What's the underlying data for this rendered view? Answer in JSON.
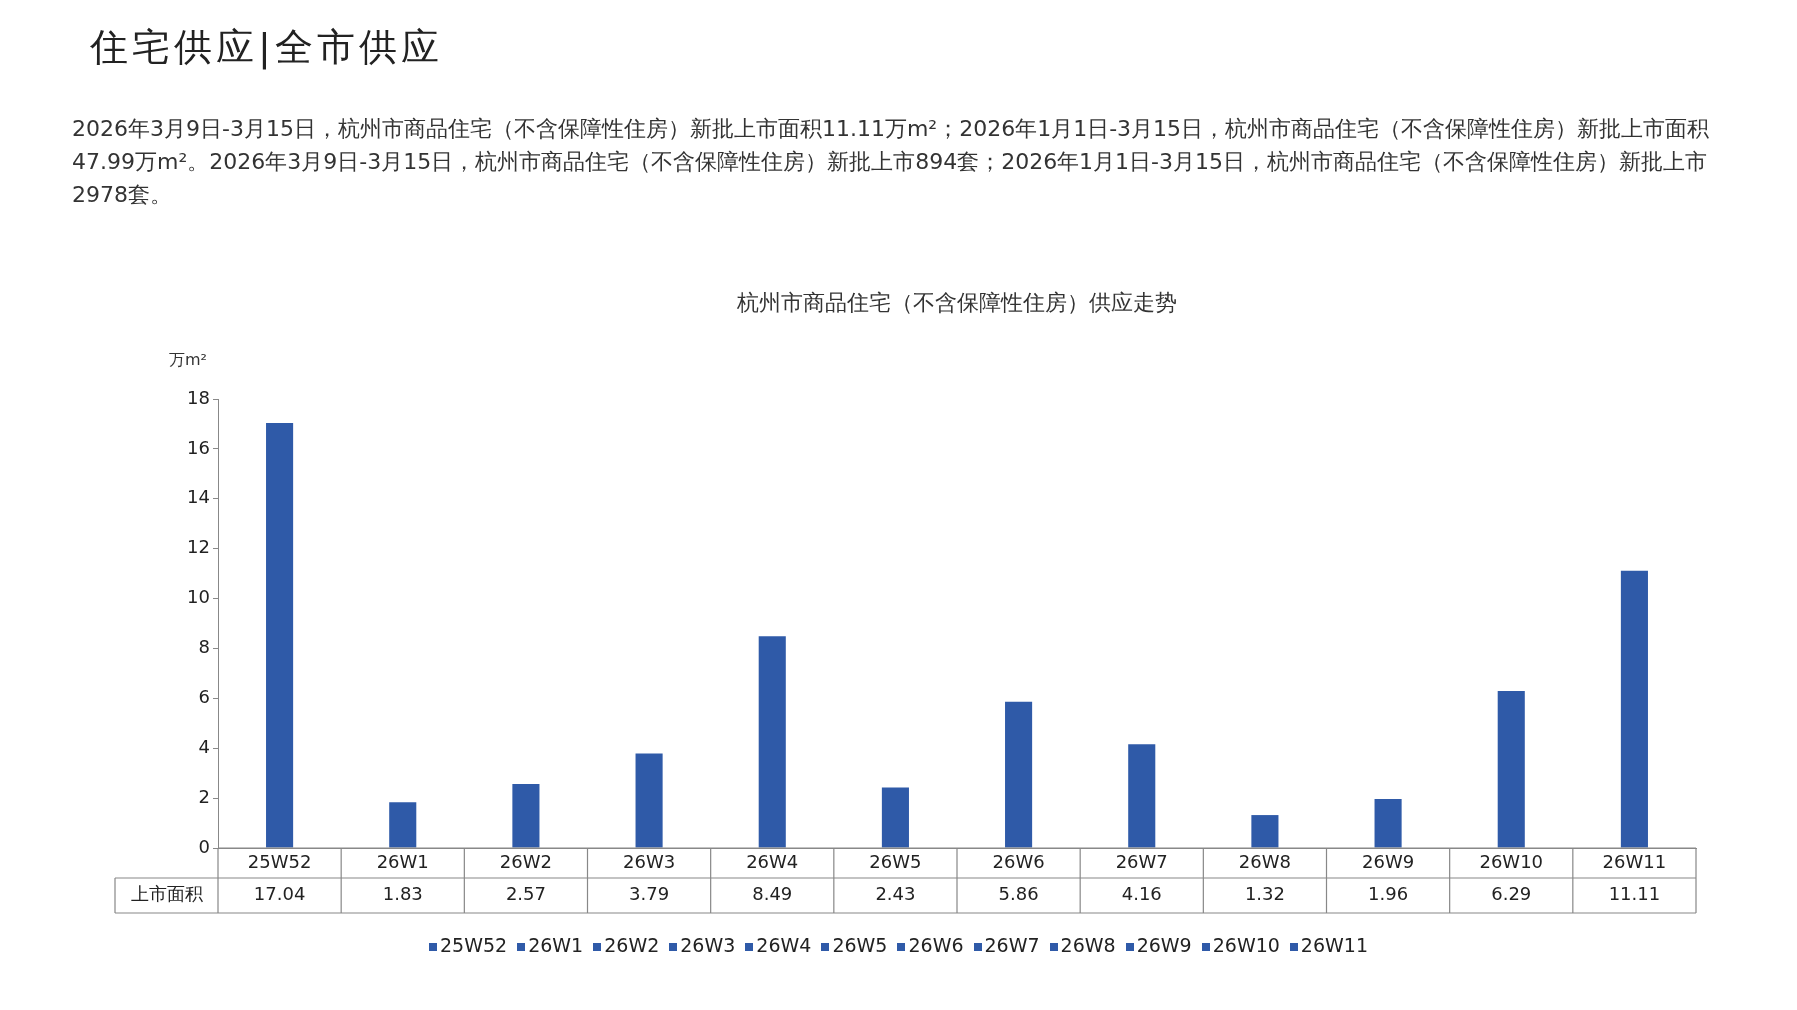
{
  "chart_data": {
    "type": "bar",
    "title": "杭州市商品住宅（不含保障性住房）供应走势",
    "annotations": [
      "住宅供应|全市供应",
      "2026年3月9日-3月15日，杭州市商品住宅（不含保障性住房）新批上市面积11.11万m²；2026年1月1日-3月15日，杭州市商品住宅（不含保障性住房）新批上市面积47.99万m²。2026年3月9日-3月15日，杭州市商品住宅（不含保障性住房）新批上市894套；2026年1月1日-3月15日，杭州市商品住宅（不含保障性住房）新批上市2978套。"
    ],
    "ylabel": "万m²",
    "categories": [
      "25W52",
      "26W1",
      "26W2",
      "26W3",
      "26W4",
      "26W5",
      "26W6",
      "26W7",
      "26W8",
      "26W9",
      "26W10",
      "26W11"
    ],
    "series": [
      {
        "name": "上市面积",
        "color": "#2f5aa8",
        "values": [
          17.04,
          1.83,
          2.57,
          3.79,
          8.49,
          2.43,
          5.86,
          4.16,
          1.32,
          1.96,
          6.29,
          11.11
        ]
      }
    ],
    "ylim": [
      0,
      18
    ],
    "yticks": [
      0,
      2,
      4,
      6,
      8,
      10,
      12,
      14,
      16,
      18
    ],
    "grid": false,
    "data_labels": true,
    "legend": "bottom"
  }
}
